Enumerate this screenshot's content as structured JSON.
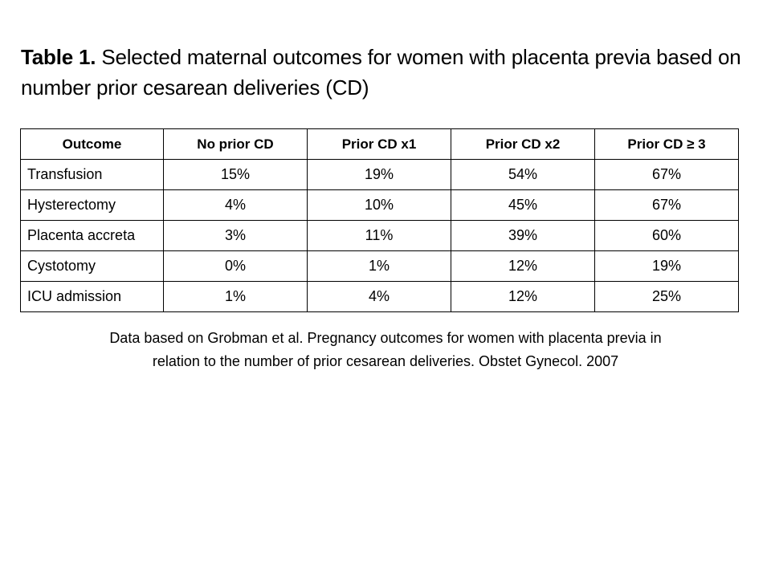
{
  "title": {
    "prefix": "Table 1.",
    "text": " Selected maternal outcomes for women with placenta previa based on number prior cesarean deliveries (CD)"
  },
  "table": {
    "headers": [
      "Outcome",
      "No prior CD",
      "Prior CD x1",
      "Prior CD x2",
      "Prior CD ≥ 3"
    ],
    "rows": [
      [
        "Transfusion",
        "15%",
        "19%",
        "54%",
        "67%"
      ],
      [
        "Hysterectomy",
        "4%",
        "10%",
        "45%",
        "67%"
      ],
      [
        "Placenta accreta",
        "3%",
        "11%",
        "39%",
        "60%"
      ],
      [
        "Cystotomy",
        "0%",
        "1%",
        "12%",
        "19%"
      ],
      [
        "ICU admission",
        "1%",
        "4%",
        "12%",
        "25%"
      ]
    ]
  },
  "footnote": {
    "line1": "Data based on Grobman et al. Pregnancy outcomes for women with placenta previa in",
    "line2": "relation to the number of prior cesarean deliveries. Obstet Gynecol. 2007"
  }
}
